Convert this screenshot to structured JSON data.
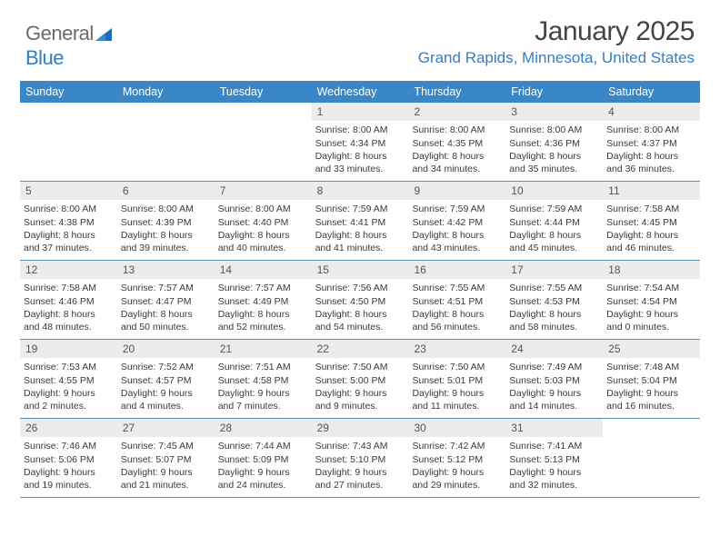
{
  "brand": {
    "name_part1": "General",
    "name_part2": "Blue"
  },
  "title": "January 2025",
  "location": "Grand Rapids, Minnesota, United States",
  "colors": {
    "header_bg": "#3a87c8",
    "header_text": "#ffffff",
    "daynum_bg": "#ececec",
    "rule": "#5a8fb8",
    "brand_gray": "#6a6a6a",
    "brand_blue": "#2f7fbf",
    "location_color": "#3a7dbb"
  },
  "day_names": [
    "Sunday",
    "Monday",
    "Tuesday",
    "Wednesday",
    "Thursday",
    "Friday",
    "Saturday"
  ],
  "weeks": [
    [
      {
        "blank": true
      },
      {
        "blank": true
      },
      {
        "blank": true
      },
      {
        "n": "1",
        "sr": "8:00 AM",
        "ss": "4:34 PM",
        "dl": "8 hours and 33 minutes."
      },
      {
        "n": "2",
        "sr": "8:00 AM",
        "ss": "4:35 PM",
        "dl": "8 hours and 34 minutes."
      },
      {
        "n": "3",
        "sr": "8:00 AM",
        "ss": "4:36 PM",
        "dl": "8 hours and 35 minutes."
      },
      {
        "n": "4",
        "sr": "8:00 AM",
        "ss": "4:37 PM",
        "dl": "8 hours and 36 minutes."
      }
    ],
    [
      {
        "n": "5",
        "sr": "8:00 AM",
        "ss": "4:38 PM",
        "dl": "8 hours and 37 minutes."
      },
      {
        "n": "6",
        "sr": "8:00 AM",
        "ss": "4:39 PM",
        "dl": "8 hours and 39 minutes."
      },
      {
        "n": "7",
        "sr": "8:00 AM",
        "ss": "4:40 PM",
        "dl": "8 hours and 40 minutes."
      },
      {
        "n": "8",
        "sr": "7:59 AM",
        "ss": "4:41 PM",
        "dl": "8 hours and 41 minutes."
      },
      {
        "n": "9",
        "sr": "7:59 AM",
        "ss": "4:42 PM",
        "dl": "8 hours and 43 minutes."
      },
      {
        "n": "10",
        "sr": "7:59 AM",
        "ss": "4:44 PM",
        "dl": "8 hours and 45 minutes."
      },
      {
        "n": "11",
        "sr": "7:58 AM",
        "ss": "4:45 PM",
        "dl": "8 hours and 46 minutes."
      }
    ],
    [
      {
        "n": "12",
        "sr": "7:58 AM",
        "ss": "4:46 PM",
        "dl": "8 hours and 48 minutes."
      },
      {
        "n": "13",
        "sr": "7:57 AM",
        "ss": "4:47 PM",
        "dl": "8 hours and 50 minutes."
      },
      {
        "n": "14",
        "sr": "7:57 AM",
        "ss": "4:49 PM",
        "dl": "8 hours and 52 minutes."
      },
      {
        "n": "15",
        "sr": "7:56 AM",
        "ss": "4:50 PM",
        "dl": "8 hours and 54 minutes."
      },
      {
        "n": "16",
        "sr": "7:55 AM",
        "ss": "4:51 PM",
        "dl": "8 hours and 56 minutes."
      },
      {
        "n": "17",
        "sr": "7:55 AM",
        "ss": "4:53 PM",
        "dl": "8 hours and 58 minutes."
      },
      {
        "n": "18",
        "sr": "7:54 AM",
        "ss": "4:54 PM",
        "dl": "9 hours and 0 minutes."
      }
    ],
    [
      {
        "n": "19",
        "sr": "7:53 AM",
        "ss": "4:55 PM",
        "dl": "9 hours and 2 minutes."
      },
      {
        "n": "20",
        "sr": "7:52 AM",
        "ss": "4:57 PM",
        "dl": "9 hours and 4 minutes."
      },
      {
        "n": "21",
        "sr": "7:51 AM",
        "ss": "4:58 PM",
        "dl": "9 hours and 7 minutes."
      },
      {
        "n": "22",
        "sr": "7:50 AM",
        "ss": "5:00 PM",
        "dl": "9 hours and 9 minutes."
      },
      {
        "n": "23",
        "sr": "7:50 AM",
        "ss": "5:01 PM",
        "dl": "9 hours and 11 minutes."
      },
      {
        "n": "24",
        "sr": "7:49 AM",
        "ss": "5:03 PM",
        "dl": "9 hours and 14 minutes."
      },
      {
        "n": "25",
        "sr": "7:48 AM",
        "ss": "5:04 PM",
        "dl": "9 hours and 16 minutes."
      }
    ],
    [
      {
        "n": "26",
        "sr": "7:46 AM",
        "ss": "5:06 PM",
        "dl": "9 hours and 19 minutes."
      },
      {
        "n": "27",
        "sr": "7:45 AM",
        "ss": "5:07 PM",
        "dl": "9 hours and 21 minutes."
      },
      {
        "n": "28",
        "sr": "7:44 AM",
        "ss": "5:09 PM",
        "dl": "9 hours and 24 minutes."
      },
      {
        "n": "29",
        "sr": "7:43 AM",
        "ss": "5:10 PM",
        "dl": "9 hours and 27 minutes."
      },
      {
        "n": "30",
        "sr": "7:42 AM",
        "ss": "5:12 PM",
        "dl": "9 hours and 29 minutes."
      },
      {
        "n": "31",
        "sr": "7:41 AM",
        "ss": "5:13 PM",
        "dl": "9 hours and 32 minutes."
      },
      {
        "blank": true
      }
    ]
  ],
  "labels": {
    "sunrise": "Sunrise:",
    "sunset": "Sunset:",
    "daylight": "Daylight:"
  }
}
